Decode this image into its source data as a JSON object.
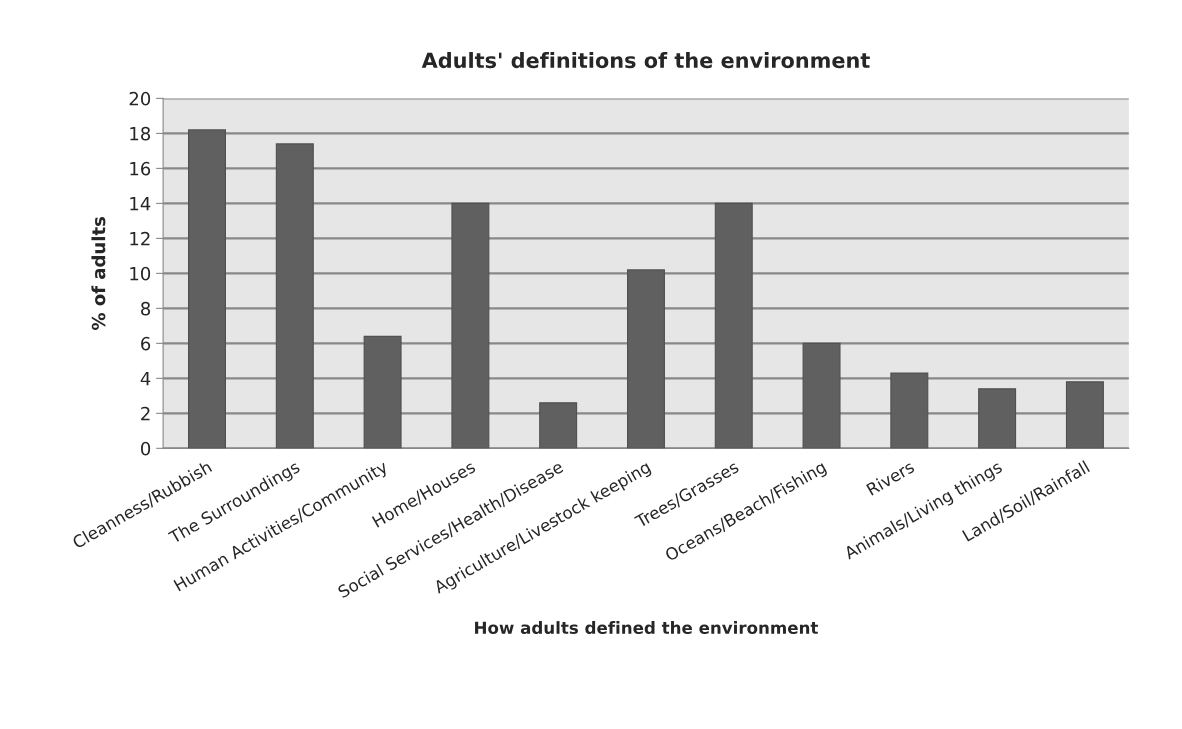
{
  "chart_data": {
    "type": "bar",
    "title": "Adults' definitions of the environment",
    "xlabel": "How adults defined the environment",
    "ylabel": "% of adults",
    "categories": [
      "Cleanness/Rubbish",
      "The Surroundings",
      "Human Activities/Community",
      "Home/Houses",
      "Social Services/Health/Disease",
      "Agriculture/Livestock keeping",
      "Trees/Grasses",
      "Oceans/Beach/Fishing",
      "Rivers",
      "Animals/Living things",
      "Land/Soil/Rainfall"
    ],
    "values": [
      18.2,
      17.4,
      6.4,
      14.0,
      2.6,
      10.2,
      14.0,
      6.0,
      4.3,
      3.4,
      3.8
    ],
    "color": "#606060",
    "ylim": [
      0,
      20
    ],
    "yticks": [
      0,
      2,
      4,
      6,
      8,
      10,
      12,
      14,
      16,
      18,
      20
    ],
    "grid": "y",
    "legend": false
  }
}
